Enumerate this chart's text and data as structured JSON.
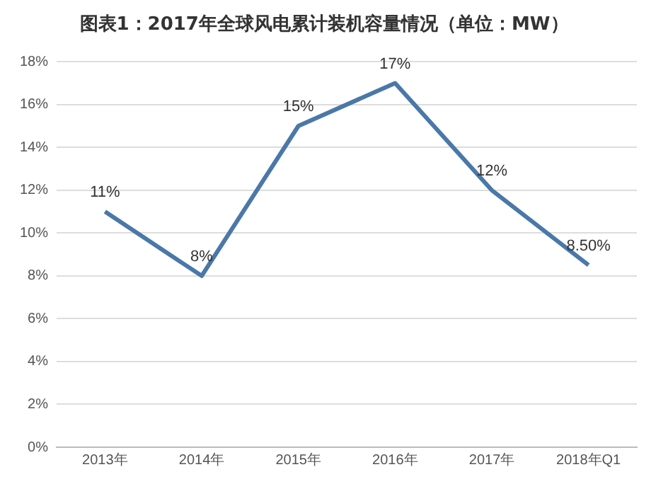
{
  "chart_data": {
    "type": "line",
    "title": "图表1：2017年全球风电累计装机容量情况（单位：MW）",
    "categories": [
      "2013年",
      "2014年",
      "2015年",
      "2016年",
      "2017年",
      "2018年Q1"
    ],
    "series": [
      {
        "color": "#4a78a8",
        "values": [
          11,
          8,
          15,
          17,
          12,
          8.5
        ]
      }
    ],
    "value_labels": [
      "11%",
      "8%",
      "15%",
      "17%",
      "12%",
      "8.50%"
    ],
    "ylim": [
      0,
      18
    ],
    "yticks": [
      {
        "value": 0,
        "label": "0%"
      },
      {
        "value": 2,
        "label": "2%"
      },
      {
        "value": 4,
        "label": "4%"
      },
      {
        "value": 6,
        "label": "6%"
      },
      {
        "value": 8,
        "label": "8%"
      },
      {
        "value": 10,
        "label": "10%"
      },
      {
        "value": 12,
        "label": "12%"
      },
      {
        "value": 14,
        "label": "14%"
      },
      {
        "value": 16,
        "label": "16%"
      },
      {
        "value": 18,
        "label": "18%"
      }
    ],
    "grid": "y",
    "legend": false,
    "marker": "none",
    "line_style": "solid"
  }
}
